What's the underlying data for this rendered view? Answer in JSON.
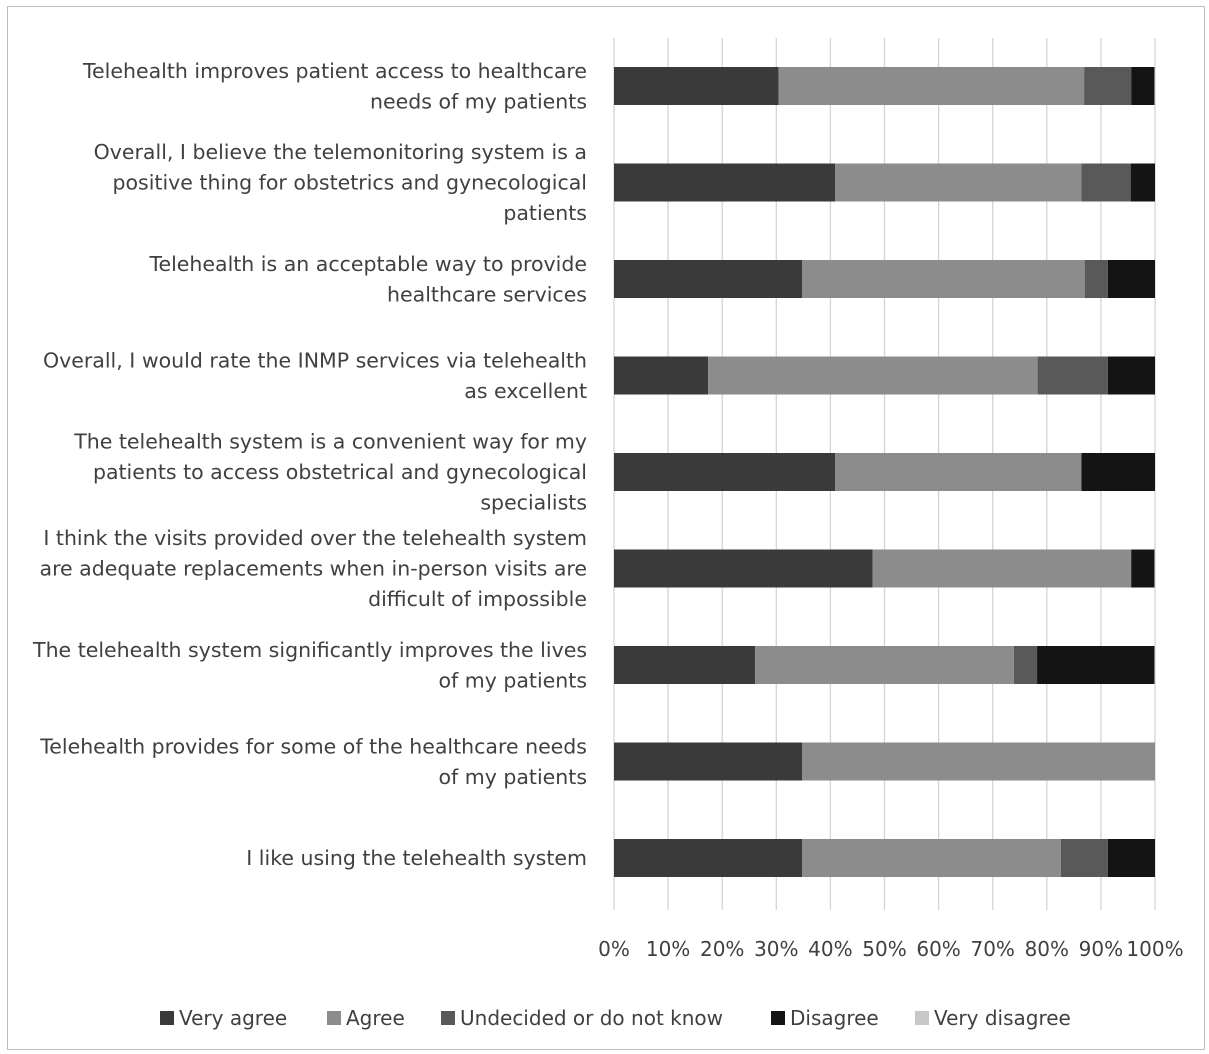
{
  "chart_data": {
    "type": "bar",
    "orientation": "horizontal",
    "stacked": "percent",
    "title": "",
    "xlabel": "",
    "ylabel": "",
    "xlim": [
      0,
      100
    ],
    "x_ticks": [
      "0%",
      "10%",
      "20%",
      "30%",
      "40%",
      "50%",
      "60%",
      "70%",
      "80%",
      "90%",
      "100%"
    ],
    "grid": "vertical",
    "legend_position": "bottom",
    "categories": [
      [
        "Telehealth improves patient access to healthcare",
        "needs of my patients"
      ],
      [
        "Overall, I believe the telemonitoring system is a",
        "positive thing for obstetrics and gynecological",
        "patients"
      ],
      [
        "Telehealth is an acceptable way to provide",
        "healthcare services"
      ],
      [
        "Overall, I would rate the INMP services via telehealth",
        "as excellent"
      ],
      [
        "The telehealth system is a convenient way for my",
        "patients to access obstetrical and gynecological",
        "specialists"
      ],
      [
        "I think the visits provided over the telehealth system",
        "are adequate replacements when in-person visits are",
        "difficult of impossible"
      ],
      [
        "The telehealth system significantly improves the lives",
        "of my patients"
      ],
      [
        "Telehealth provides for some of the healthcare needs",
        "of my patients"
      ],
      [
        "I like using the telehealth system"
      ]
    ],
    "series": [
      {
        "name": "Very agree",
        "color": "#3a3a3a",
        "values": [
          30.4,
          40.9,
          34.8,
          17.4,
          40.9,
          47.8,
          26.1,
          34.8,
          34.8
        ]
      },
      {
        "name": "Agree",
        "color": "#8c8c8c",
        "values": [
          56.5,
          45.5,
          52.2,
          60.9,
          45.5,
          47.8,
          47.8,
          65.2,
          47.8
        ]
      },
      {
        "name": "Undecided or do not know",
        "color": "#595959",
        "values": [
          8.7,
          9.1,
          4.3,
          13.0,
          0,
          0,
          4.3,
          0,
          8.7
        ]
      },
      {
        "name": "Disagree",
        "color": "#141414",
        "values": [
          4.3,
          4.5,
          8.7,
          8.7,
          13.6,
          4.3,
          21.7,
          0,
          8.7
        ]
      },
      {
        "name": "Very disagree",
        "color": "#c8c8c8",
        "values": [
          0,
          0,
          0,
          0,
          0,
          0,
          0,
          0,
          0
        ]
      }
    ]
  }
}
